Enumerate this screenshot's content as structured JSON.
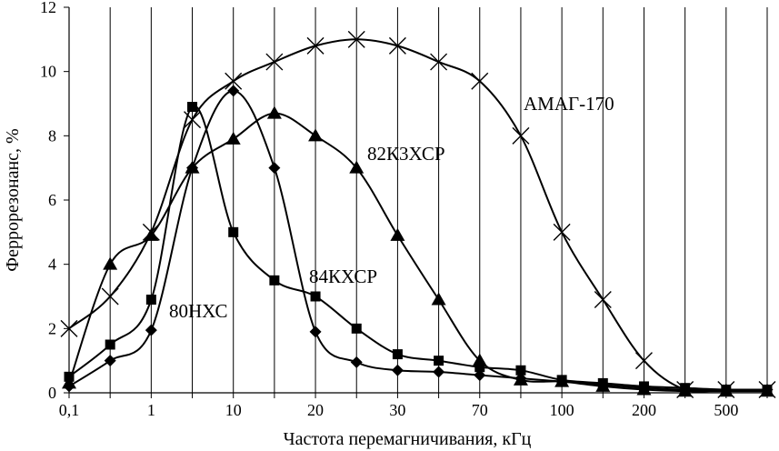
{
  "chart_data": {
    "type": "line",
    "title": "",
    "xlabel": "Частота перемагничивания, кГц",
    "ylabel": "Феррорезонанс, %",
    "x_tick_labels": [
      "0,1",
      "",
      "1",
      "",
      "10",
      "",
      "20",
      "",
      "30",
      "",
      "70",
      "",
      "100",
      "",
      "200",
      "",
      "500",
      ""
    ],
    "ylim": [
      0,
      12
    ],
    "y_ticks": [
      0,
      2,
      4,
      6,
      8,
      10,
      12
    ],
    "grid": {
      "x": true,
      "y": false
    },
    "series": [
      {
        "name": "АМАГ-170",
        "marker": "x",
        "x_index": [
          0,
          1,
          2,
          3,
          4,
          5,
          6,
          7,
          8,
          9,
          10,
          11,
          12,
          13,
          14,
          15,
          16,
          17
        ],
        "values": [
          2.0,
          3.0,
          5.0,
          8.5,
          9.7,
          10.3,
          10.8,
          11.0,
          10.8,
          10.3,
          9.7,
          8.0,
          5.0,
          2.9,
          1.0,
          0.1,
          0.1,
          0.1
        ]
      },
      {
        "name": "82К3ХСР",
        "marker": "triangle",
        "x_index": [
          0,
          1,
          2,
          3,
          4,
          5,
          6,
          7,
          8,
          9,
          10,
          11,
          12,
          13,
          14,
          15,
          16,
          17
        ],
        "values": [
          0.3,
          4.0,
          4.9,
          7.0,
          7.9,
          8.7,
          8.0,
          7.0,
          4.9,
          2.9,
          1.0,
          0.4,
          0.35,
          0.2,
          0.1,
          0.05,
          0.05,
          0.05
        ]
      },
      {
        "name": "84КХСР",
        "marker": "square",
        "x_index": [
          0,
          1,
          2,
          3,
          4,
          5,
          6,
          7,
          8,
          9,
          10,
          11,
          12,
          13,
          14,
          15,
          16,
          17
        ],
        "values": [
          0.5,
          1.5,
          2.9,
          8.9,
          5.0,
          3.5,
          3.0,
          2.0,
          1.2,
          1.0,
          0.8,
          0.7,
          0.4,
          0.3,
          0.2,
          0.15,
          0.1,
          0.1
        ]
      },
      {
        "name": "80НХС",
        "marker": "diamond",
        "x_index": [
          0,
          1,
          2,
          3,
          4,
          5,
          6,
          7,
          8,
          9,
          10,
          11,
          12,
          13,
          14,
          15,
          16,
          17
        ],
        "values": [
          0.2,
          1.0,
          1.95,
          7.0,
          9.4,
          7.0,
          1.9,
          0.95,
          0.7,
          0.65,
          0.55,
          0.45,
          0.35,
          0.25,
          0.15,
          0.1,
          0.1,
          0.1
        ]
      }
    ]
  }
}
